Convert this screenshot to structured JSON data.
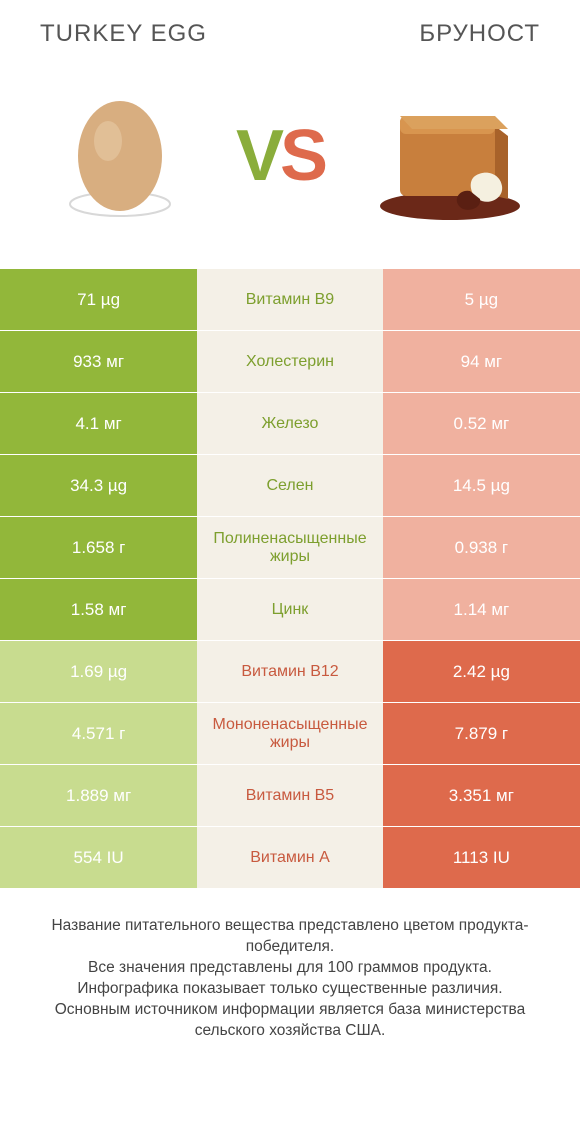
{
  "titles": {
    "left": "TURKEY EGG",
    "right": "БРУНОСТ"
  },
  "vs": {
    "v": "V",
    "s": "S"
  },
  "colors": {
    "left_win": "#92b73a",
    "left_lose": "#c8dc8f",
    "right_win": "#de6a4c",
    "right_lose": "#f0b19f",
    "mid_bg": "#f4f0e7",
    "mid_text_left": "#7d9f2e",
    "mid_text_right": "#c85a3f"
  },
  "rows": [
    {
      "label": "Витамин B9",
      "left": "71 µg",
      "right": "5 µg",
      "winner": "left"
    },
    {
      "label": "Холестерин",
      "left": "933 мг",
      "right": "94 мг",
      "winner": "left"
    },
    {
      "label": "Железо",
      "left": "4.1 мг",
      "right": "0.52 мг",
      "winner": "left"
    },
    {
      "label": "Селен",
      "left": "34.3 µg",
      "right": "14.5 µg",
      "winner": "left"
    },
    {
      "label": "Полиненасыщенные жиры",
      "left": "1.658 г",
      "right": "0.938 г",
      "winner": "left"
    },
    {
      "label": "Цинк",
      "left": "1.58 мг",
      "right": "1.14 мг",
      "winner": "left"
    },
    {
      "label": "Витамин B12",
      "left": "1.69 µg",
      "right": "2.42 µg",
      "winner": "right"
    },
    {
      "label": "Мононенасыщенные жиры",
      "left": "4.571 г",
      "right": "7.879 г",
      "winner": "right"
    },
    {
      "label": "Витамин B5",
      "left": "1.889 мг",
      "right": "3.351 мг",
      "winner": "right"
    },
    {
      "label": "Витамин A",
      "left": "554 IU",
      "right": "1113 IU",
      "winner": "right"
    }
  ],
  "footer": {
    "line1": "Название питательного вещества представлено цветом продукта-победителя.",
    "line2": "Все значения представлены для 100 граммов продукта.",
    "line3": "Инфографика показывает только существенные различия.",
    "line4": "Основным источником информации является база министерства сельского хозяйства США."
  },
  "egg_svg": {
    "shell": "#d4a87a",
    "rim": "#cccccc"
  },
  "cheese_svg": {
    "block": "#c87f3d",
    "block_dark": "#b06a2a",
    "board": "#7a2e1e",
    "cream": "#f5f0e0"
  }
}
